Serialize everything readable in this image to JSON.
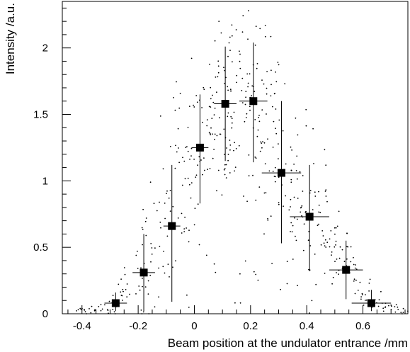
{
  "chart_data": {
    "type": "scatter",
    "xlabel": "Beam position at the undulator entrance /mm",
    "ylabel": "Intensity /a.u.",
    "xlim": [
      -0.47,
      0.76
    ],
    "ylim": [
      0,
      2.35
    ],
    "xticks": [
      -0.4,
      -0.2,
      0,
      0.2,
      0.4,
      0.6
    ],
    "xtick_labels": [
      "-0.4",
      "-0.2",
      "0",
      "0.2",
      "0.4",
      "0.6"
    ],
    "yticks": [
      0,
      0.5,
      1,
      1.5,
      2
    ],
    "ytick_labels": [
      "0",
      "0.5",
      "1",
      "1.5",
      "2"
    ],
    "grid": false,
    "binned_means": [
      {
        "x": -0.28,
        "y": 0.08,
        "xerr": 0.04,
        "yerr_low": 0.06,
        "yerr_high": 0.08
      },
      {
        "x": -0.18,
        "y": 0.31,
        "xerr": 0.04,
        "yerr_low": 0.29,
        "yerr_high": 0.29
      },
      {
        "x": -0.08,
        "y": 0.66,
        "xerr": 0.03,
        "yerr_low": 0.57,
        "yerr_high": 0.46
      },
      {
        "x": 0.02,
        "y": 1.25,
        "xerr": 0.03,
        "yerr_low": 0.42,
        "yerr_high": 0.4
      },
      {
        "x": 0.11,
        "y": 1.58,
        "xerr": 0.04,
        "yerr_low": 0.43,
        "yerr_high": 0.43
      },
      {
        "x": 0.21,
        "y": 1.6,
        "xerr": 0.05,
        "yerr_low": 0.46,
        "yerr_high": 0.44
      },
      {
        "x": 0.31,
        "y": 1.06,
        "xerr": 0.07,
        "yerr_low": 0.53,
        "yerr_high": 0.54
      },
      {
        "x": 0.41,
        "y": 0.73,
        "xerr": 0.07,
        "yerr_low": 0.41,
        "yerr_high": 0.39
      },
      {
        "x": 0.54,
        "y": 0.33,
        "xerr": 0.06,
        "yerr_low": 0.22,
        "yerr_high": 0.22
      },
      {
        "x": 0.63,
        "y": 0.08,
        "xerr": 0.07,
        "yerr_low": 0.06,
        "yerr_high": 0.1
      }
    ],
    "scatter_density": {
      "centers": [
        -0.4,
        -0.35,
        -0.3,
        -0.25,
        -0.2,
        -0.15,
        -0.1,
        -0.05,
        0,
        0.05,
        0.1,
        0.15,
        0.2,
        0.25,
        0.3,
        0.35,
        0.4,
        0.45,
        0.5,
        0.55,
        0.6,
        0.65,
        0.7,
        0.74
      ],
      "counts": [
        9,
        11,
        13,
        15,
        17,
        20,
        22,
        26,
        30,
        33,
        38,
        38,
        38,
        35,
        32,
        30,
        28,
        25,
        22,
        19,
        16,
        13,
        10,
        8
      ],
      "y_center": [
        0.02,
        0.03,
        0.06,
        0.12,
        0.28,
        0.42,
        0.6,
        0.9,
        1.2,
        1.45,
        1.55,
        1.6,
        1.6,
        1.45,
        1.2,
        0.95,
        0.78,
        0.6,
        0.42,
        0.3,
        0.15,
        0.07,
        0.04,
        0.02
      ],
      "y_spread": [
        0.02,
        0.03,
        0.05,
        0.1,
        0.2,
        0.28,
        0.38,
        0.45,
        0.45,
        0.45,
        0.45,
        0.48,
        0.5,
        0.5,
        0.48,
        0.42,
        0.35,
        0.3,
        0.22,
        0.18,
        0.1,
        0.06,
        0.04,
        0.02
      ],
      "y_max": [
        0.05,
        0.1,
        0.2,
        0.45,
        0.8,
        1.1,
        1.55,
        1.8,
        1.95,
        2.1,
        2.2,
        2.25,
        2.28,
        2.2,
        2.05,
        1.85,
        1.6,
        1.25,
        1.0,
        0.75,
        0.5,
        0.3,
        0.15,
        0.06
      ]
    }
  }
}
